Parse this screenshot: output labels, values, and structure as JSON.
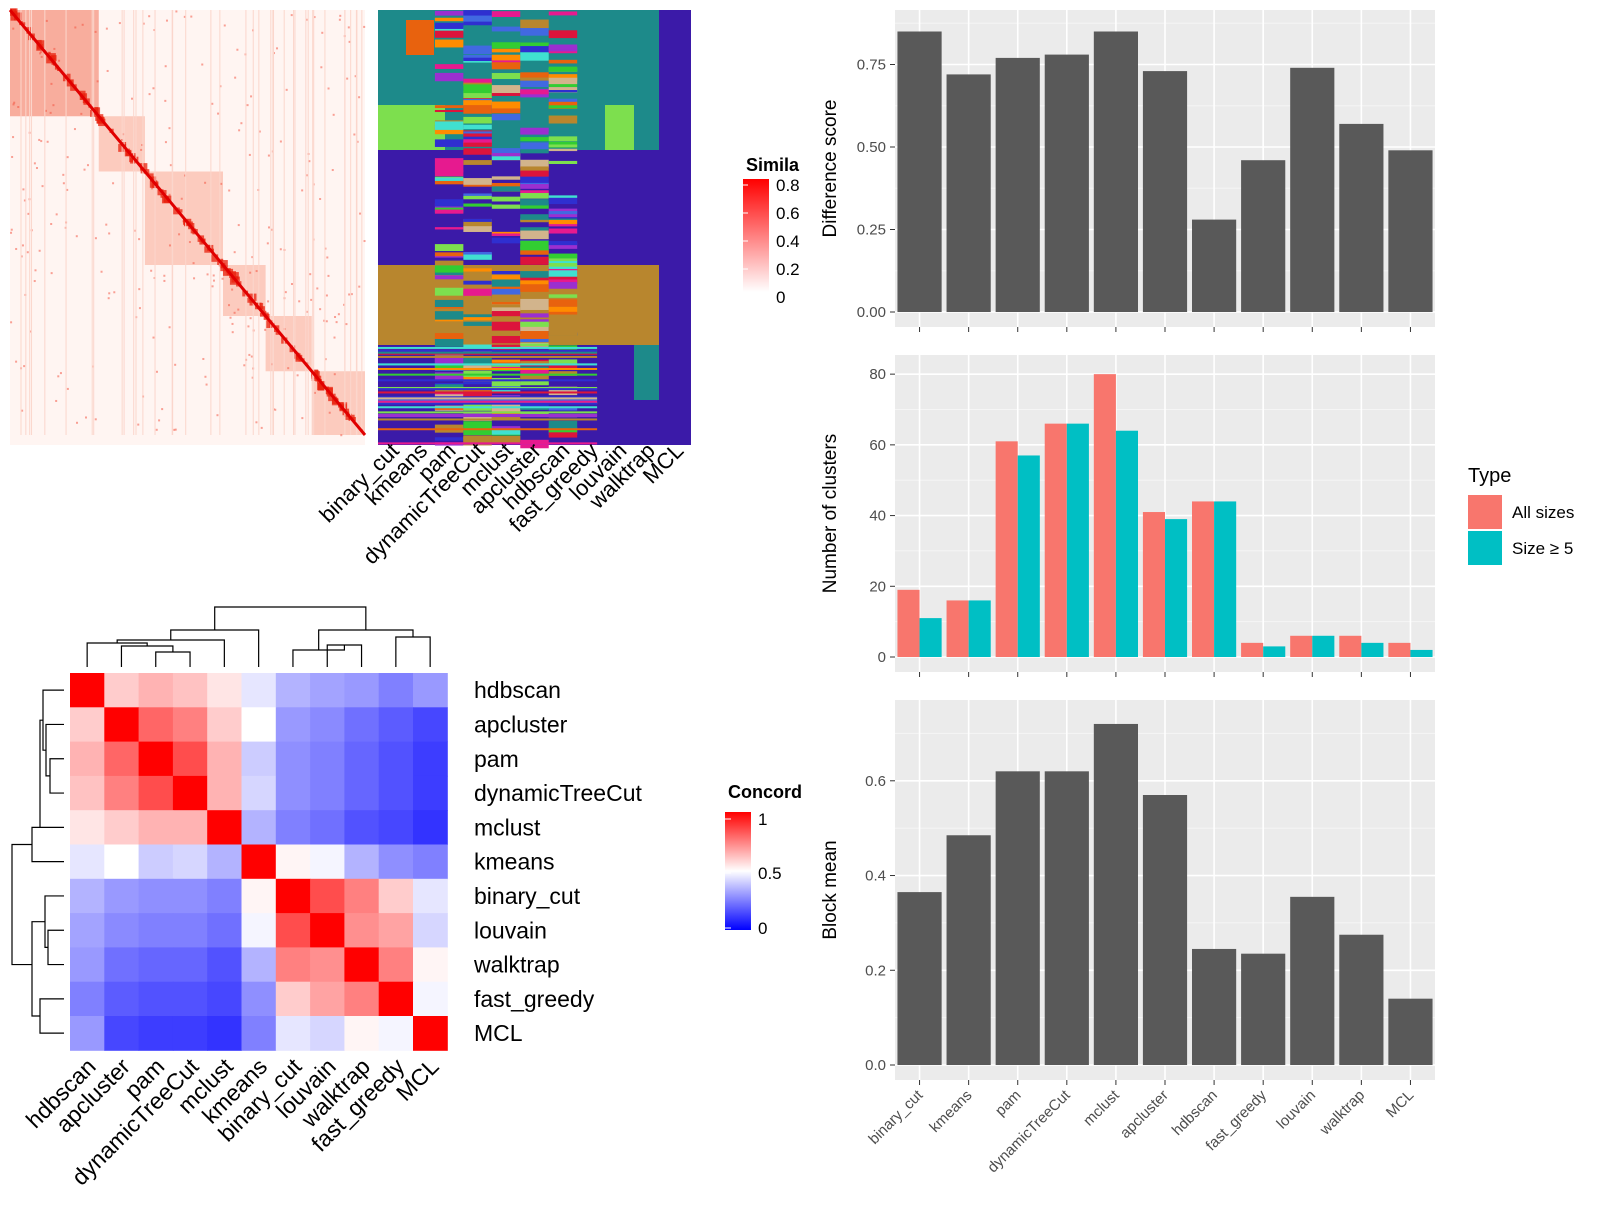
{
  "similarity_panel": {
    "legend_title": "Simila",
    "legend_ticks": [
      "0.8",
      "0.6",
      "0.4",
      "0.2",
      "0"
    ],
    "method_labels": [
      "binary_cut",
      "kmeans",
      "pam",
      "dynamicTreeCut",
      "mclust",
      "apcluster",
      "hdbscan",
      "fast_greedy",
      "louvain",
      "walktrap",
      "MCL"
    ]
  },
  "concordance_panel": {
    "legend_title": "Concord",
    "legend_ticks": [
      "1",
      "0.5",
      "0"
    ],
    "colors": {
      "high": "#ff0000",
      "mid": "#ffffff",
      "low": "#0000ff"
    },
    "row_labels": [
      "hdbscan",
      "apcluster",
      "pam",
      "dynamicTreeCut",
      "mclust",
      "kmeans",
      "binary_cut",
      "louvain",
      "walktrap",
      "fast_greedy",
      "MCL"
    ],
    "col_labels": [
      "hdbscan",
      "apcluster",
      "pam",
      "dynamicTreeCut",
      "mclust",
      "kmeans",
      "binary_cut",
      "louvain",
      "walktrap",
      "fast_greedy",
      "MCL"
    ]
  },
  "chart_data": [
    {
      "type": "bar",
      "categories": [
        "binary_cut",
        "kmeans",
        "pam",
        "dynamicTreeCut",
        "mclust",
        "apcluster",
        "hdbscan",
        "fast_greedy",
        "louvain",
        "walktrap",
        "MCL"
      ],
      "values": [
        0.85,
        0.72,
        0.77,
        0.78,
        0.85,
        0.73,
        0.28,
        0.46,
        0.74,
        0.57,
        0.49
      ],
      "ylabel": "Difference score",
      "ylim": [
        0,
        0.9
      ],
      "yticks": [
        "0.00",
        "0.25",
        "0.50",
        "0.75"
      ],
      "bar_color": "#595959"
    },
    {
      "type": "bar",
      "categories": [
        "binary_cut",
        "kmeans",
        "pam",
        "dynamicTreeCut",
        "mclust",
        "apcluster",
        "hdbscan",
        "fast_greedy",
        "louvain",
        "walktrap",
        "MCL"
      ],
      "series": [
        {
          "name": "All sizes",
          "values": [
            19,
            16,
            61,
            66,
            80,
            41,
            44,
            4,
            6,
            6,
            4
          ],
          "color": "#f8766d"
        },
        {
          "name": "Size ≥ 5",
          "values": [
            11,
            16,
            57,
            66,
            64,
            39,
            44,
            3,
            6,
            4,
            2
          ],
          "color": "#00bfc4"
        }
      ],
      "ylabel": "Number of clusters",
      "ylim": [
        0,
        84
      ],
      "yticks": [
        "0",
        "20",
        "40",
        "60",
        "80"
      ],
      "legend_title": "Type",
      "legend": "right"
    },
    {
      "type": "bar",
      "categories": [
        "binary_cut",
        "kmeans",
        "pam",
        "dynamicTreeCut",
        "mclust",
        "apcluster",
        "hdbscan",
        "fast_greedy",
        "louvain",
        "walktrap",
        "MCL"
      ],
      "values": [
        0.365,
        0.485,
        0.62,
        0.62,
        0.72,
        0.57,
        0.245,
        0.235,
        0.355,
        0.275,
        0.14
      ],
      "ylabel": "Block mean",
      "ylim": [
        0,
        0.76
      ],
      "yticks": [
        "0.0",
        "0.2",
        "0.4",
        "0.6"
      ],
      "bar_color": "#595959"
    },
    {
      "type": "heatmap",
      "rows": [
        "hdbscan",
        "apcluster",
        "pam",
        "dynamicTreeCut",
        "mclust",
        "kmeans",
        "binary_cut",
        "louvain",
        "walktrap",
        "fast_greedy",
        "MCL"
      ],
      "columns": [
        "hdbscan",
        "apcluster",
        "pam",
        "dynamicTreeCut",
        "mclust",
        "kmeans",
        "binary_cut",
        "louvain",
        "walktrap",
        "fast_greedy",
        "MCL"
      ],
      "values": [
        [
          1.0,
          0.6,
          0.65,
          0.62,
          0.55,
          0.45,
          0.35,
          0.32,
          0.3,
          0.25,
          0.3
        ],
        [
          0.6,
          1.0,
          0.8,
          0.75,
          0.6,
          0.5,
          0.3,
          0.27,
          0.22,
          0.18,
          0.14
        ],
        [
          0.65,
          0.8,
          1.0,
          0.85,
          0.65,
          0.4,
          0.28,
          0.25,
          0.2,
          0.16,
          0.12
        ],
        [
          0.62,
          0.75,
          0.85,
          1.0,
          0.65,
          0.42,
          0.28,
          0.25,
          0.2,
          0.16,
          0.12
        ],
        [
          0.55,
          0.6,
          0.65,
          0.65,
          1.0,
          0.35,
          0.25,
          0.22,
          0.16,
          0.14,
          0.1
        ],
        [
          0.45,
          0.5,
          0.4,
          0.42,
          0.35,
          1.0,
          0.52,
          0.48,
          0.35,
          0.28,
          0.25
        ],
        [
          0.35,
          0.3,
          0.28,
          0.28,
          0.25,
          0.52,
          1.0,
          0.85,
          0.75,
          0.6,
          0.45
        ],
        [
          0.32,
          0.27,
          0.25,
          0.25,
          0.22,
          0.48,
          0.85,
          1.0,
          0.72,
          0.68,
          0.42
        ],
        [
          0.3,
          0.22,
          0.2,
          0.2,
          0.16,
          0.35,
          0.75,
          0.72,
          1.0,
          0.75,
          0.52
        ],
        [
          0.25,
          0.18,
          0.16,
          0.16,
          0.14,
          0.28,
          0.6,
          0.68,
          0.75,
          1.0,
          0.48
        ],
        [
          0.3,
          0.14,
          0.12,
          0.12,
          0.1,
          0.25,
          0.45,
          0.42,
          0.52,
          0.48,
          1.0
        ]
      ]
    }
  ]
}
